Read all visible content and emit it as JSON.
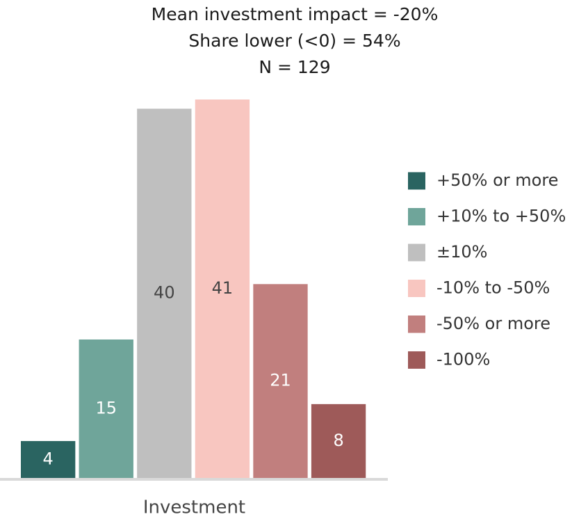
{
  "chart_data": {
    "type": "bar",
    "title": [
      "Mean investment impact = -20%",
      "Share lower (<0) = 54%",
      "N = 129"
    ],
    "categories": [
      "Investment"
    ],
    "series": [
      {
        "name": "+50% or more",
        "color": "#2a6461",
        "values": [
          4
        ]
      },
      {
        "name": "+10% to +50%",
        "color": "#6fa59a",
        "values": [
          15
        ]
      },
      {
        "name": "±10%",
        "color": "#bfbfbf",
        "values": [
          40
        ]
      },
      {
        "name": "-10% to -50%",
        "color": "#f8c6c0",
        "values": [
          41
        ]
      },
      {
        "name": "-50% or more",
        "color": "#c17f7e",
        "values": [
          21
        ]
      },
      {
        "name": "-100%",
        "color": "#9e5a59",
        "values": [
          8
        ]
      }
    ],
    "legend": "right"
  }
}
